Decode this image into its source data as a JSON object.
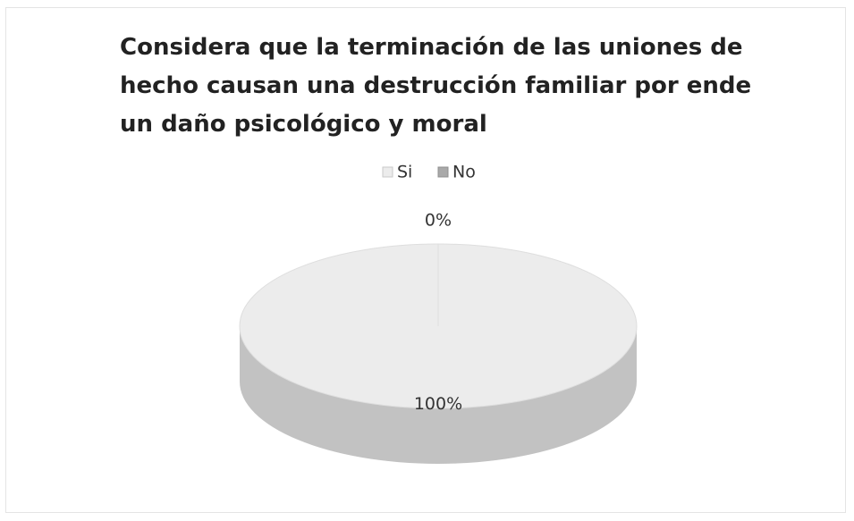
{
  "chart_data": {
    "type": "pie",
    "title": "Considera que la terminación de las uniones de hecho causan una destrucción familiar por ende un daño psicológico y moral",
    "categories": [
      "Si",
      "No"
    ],
    "values": [
      100,
      0
    ],
    "value_labels": [
      "100%",
      "0%"
    ],
    "colors": [
      "#ececec",
      "#a9a9a9"
    ],
    "legend": "top",
    "three_d": true
  }
}
